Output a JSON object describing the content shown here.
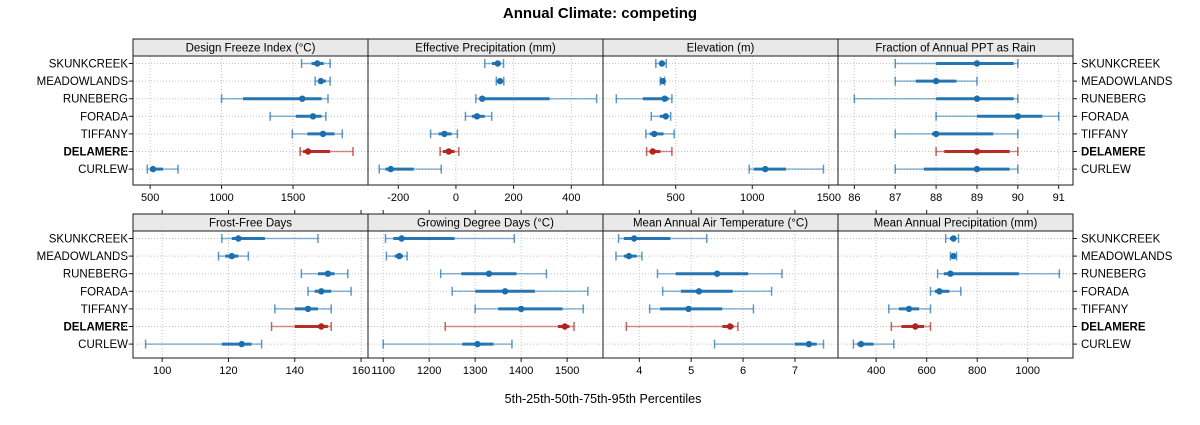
{
  "title": "Annual Climate: competing",
  "caption": "5th-25th-50th-75th-95th Percentiles",
  "palette": {
    "series_blue": "#1b6fae",
    "target_red": "#b2231c",
    "grid_grey": "#c3c3c3",
    "strip_bg": "#e9e9e9",
    "border": "#1a1a1a",
    "text": "#000000"
  },
  "chart_data": {
    "type": "dot-interval-trellis",
    "layout": "2 rows x 4 columns, free x scales",
    "categories": [
      "SKUNKCREEK",
      "MEADOWLANDS",
      "RUNEBERG",
      "FORADA",
      "TIFFANY",
      "DELAMERE",
      "CURLEW"
    ],
    "percentiles": [
      "5th",
      "25th",
      "50th",
      "75th",
      "95th"
    ],
    "highlight_series": "DELAMERE",
    "legend_position": "none",
    "grid": "dotted",
    "panels": [
      {
        "title": "Design Freeze Index (°C)",
        "row": 0,
        "col": 0,
        "xlim": [
          380,
          2025
        ],
        "tick_values": [
          500,
          1000,
          1500
        ],
        "tick_labels": [
          "500",
          "1000",
          "1500"
        ],
        "values": [
          [
            1560,
            1630,
            1670,
            1715,
            1760
          ],
          [
            1655,
            1680,
            1695,
            1730,
            1760
          ],
          [
            1000,
            1150,
            1565,
            1700,
            1745
          ],
          [
            1340,
            1520,
            1640,
            1700,
            1730
          ],
          [
            1495,
            1600,
            1710,
            1790,
            1845
          ],
          [
            1550,
            1570,
            1605,
            1760,
            1920
          ],
          [
            480,
            500,
            520,
            590,
            695
          ]
        ]
      },
      {
        "title": "Effective Precipitation (mm)",
        "row": 0,
        "col": 1,
        "xlim": [
          -305,
          510
        ],
        "tick_values": [
          -200,
          0,
          200,
          400
        ],
        "tick_labels": [
          "-200",
          "0",
          "200",
          "400"
        ],
        "values": [
          [
            100,
            125,
            145,
            155,
            165
          ],
          [
            140,
            148,
            153,
            160,
            166
          ],
          [
            69,
            82,
            91,
            325,
            488
          ],
          [
            33,
            55,
            73,
            100,
            124
          ],
          [
            -88,
            -60,
            -40,
            -15,
            5
          ],
          [
            -55,
            -45,
            -25,
            -5,
            10
          ],
          [
            -266,
            -245,
            -226,
            -146,
            -51
          ]
        ]
      },
      {
        "title": "Elevation (m)",
        "row": 0,
        "col": 2,
        "xlim": [
          25,
          1560
        ],
        "tick_values": [
          500,
          1000,
          1500
        ],
        "tick_labels": [
          "500",
          "1000",
          "1500"
        ],
        "values": [
          [
            370,
            392,
            410,
            424,
            438
          ],
          [
            400,
            408,
            415,
            422,
            428
          ],
          [
            112,
            285,
            428,
            455,
            475
          ],
          [
            340,
            395,
            435,
            452,
            467
          ],
          [
            305,
            330,
            360,
            420,
            490
          ],
          [
            310,
            330,
            350,
            400,
            475
          ],
          [
            980,
            1010,
            1085,
            1220,
            1465
          ]
        ]
      },
      {
        "title": "Fraction of Annual PPT as Rain",
        "row": 0,
        "col": 3,
        "xlim": [
          85.6,
          91.35
        ],
        "tick_values": [
          86,
          87,
          88,
          89,
          90,
          91
        ],
        "tick_labels": [
          "86",
          "87",
          "88",
          "89",
          "90",
          "91"
        ],
        "values": [
          [
            87,
            88,
            89,
            89.9,
            90
          ],
          [
            87,
            87.5,
            88,
            88.5,
            89
          ],
          [
            86,
            88,
            89,
            89.9,
            90
          ],
          [
            88,
            89,
            90,
            90.6,
            91
          ],
          [
            87,
            87.9,
            88,
            89.4,
            90
          ],
          [
            88,
            88.2,
            89,
            89.8,
            90
          ],
          [
            87,
            87.7,
            89,
            89.8,
            90
          ]
        ]
      },
      {
        "title": "Frost-Free Days",
        "row": 1,
        "col": 0,
        "xlim": [
          91.2,
          162.1
        ],
        "tick_values": [
          100,
          120,
          140,
          160
        ],
        "tick_labels": [
          "100",
          "120",
          "140",
          "160"
        ],
        "values": [
          [
            118,
            121,
            123,
            131,
            147
          ],
          [
            117,
            119,
            121,
            123,
            126
          ],
          [
            142,
            147,
            150,
            152,
            156
          ],
          [
            144,
            146,
            148,
            151,
            157
          ],
          [
            134,
            140,
            144,
            147,
            151
          ],
          [
            133,
            140,
            148,
            150,
            151
          ],
          [
            95,
            118,
            124,
            127,
            130
          ]
        ]
      },
      {
        "title": "Growing Degree Days (°C)",
        "row": 1,
        "col": 1,
        "xlim": [
          1067,
          1578
        ],
        "tick_values": [
          1100,
          1200,
          1300,
          1400,
          1500
        ],
        "tick_labels": [
          "1100",
          "1200",
          "1300",
          "1400",
          "1500"
        ],
        "values": [
          [
            1105,
            1122,
            1140,
            1255,
            1385
          ],
          [
            1107,
            1125,
            1135,
            1143,
            1152
          ],
          [
            1225,
            1270,
            1330,
            1390,
            1455
          ],
          [
            1250,
            1300,
            1365,
            1430,
            1545
          ],
          [
            1300,
            1350,
            1400,
            1490,
            1535
          ],
          [
            1235,
            1480,
            1495,
            1505,
            1515
          ],
          [
            1100,
            1272,
            1305,
            1340,
            1380
          ]
        ]
      },
      {
        "title": "Mean Annual Air Temperature (°C)",
        "row": 1,
        "col": 2,
        "xlim": [
          3.3,
          7.83
        ],
        "tick_values": [
          4,
          5,
          6,
          7
        ],
        "tick_labels": [
          "4",
          "5",
          "6",
          "7"
        ],
        "values": [
          [
            3.6,
            3.7,
            3.9,
            4.6,
            5.3
          ],
          [
            3.55,
            3.7,
            3.8,
            3.95,
            4.05
          ],
          [
            4.35,
            4.7,
            5.5,
            6.1,
            6.75
          ],
          [
            4.45,
            4.8,
            5.15,
            5.8,
            6.55
          ],
          [
            4.2,
            4.4,
            4.95,
            5.6,
            6.2
          ],
          [
            3.75,
            5.6,
            5.75,
            5.82,
            5.9
          ],
          [
            5.45,
            7.0,
            7.27,
            7.42,
            7.55
          ]
        ]
      },
      {
        "title": "Mean Annual Precipitation (mm)",
        "row": 1,
        "col": 3,
        "xlim": [
          249,
          1179
        ],
        "tick_values": [
          400,
          600,
          800,
          1000
        ],
        "tick_labels": [
          "400",
          "600",
          "800",
          "1000"
        ],
        "values": [
          [
            675,
            692,
            706,
            716,
            726
          ],
          [
            694,
            700,
            706,
            712,
            718
          ],
          [
            643,
            668,
            694,
            965,
            1125
          ],
          [
            615,
            632,
            650,
            690,
            735
          ],
          [
            450,
            490,
            530,
            570,
            615
          ],
          [
            460,
            500,
            555,
            590,
            615
          ],
          [
            310,
            325,
            340,
            390,
            470
          ]
        ]
      }
    ]
  }
}
